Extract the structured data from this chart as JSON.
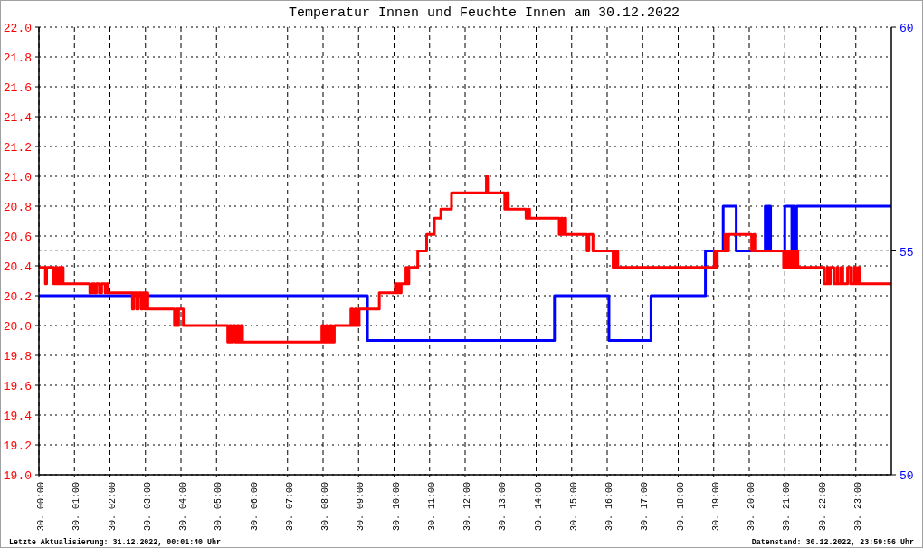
{
  "chart_data": {
    "type": "step",
    "title": "Temperatur Innen und Feuchte Innen am 30.12.2022",
    "xlim": [
      "2022-12-30T00:00",
      "2022-12-31T00:00"
    ],
    "xticks": [
      {
        "value": "2022-12-30T00:00",
        "label": "30. 00:00"
      },
      {
        "value": "2022-12-30T01:00",
        "label": "30. 01:00"
      },
      {
        "value": "2022-12-30T02:00",
        "label": "30. 02:00"
      },
      {
        "value": "2022-12-30T03:00",
        "label": "30. 03:00"
      },
      {
        "value": "2022-12-30T04:00",
        "label": "30. 04:00"
      },
      {
        "value": "2022-12-30T05:00",
        "label": "30. 05:00"
      },
      {
        "value": "2022-12-30T06:00",
        "label": "30. 06:00"
      },
      {
        "value": "2022-12-30T07:00",
        "label": "30. 07:00"
      },
      {
        "value": "2022-12-30T08:00",
        "label": "30. 08:00"
      },
      {
        "value": "2022-12-30T09:00",
        "label": "30. 09:00"
      },
      {
        "value": "2022-12-30T10:00",
        "label": "30. 10:00"
      },
      {
        "value": "2022-12-30T11:00",
        "label": "30. 11:00"
      },
      {
        "value": "2022-12-30T12:00",
        "label": "30. 12:00"
      },
      {
        "value": "2022-12-30T13:00",
        "label": "30. 13:00"
      },
      {
        "value": "2022-12-30T14:00",
        "label": "30. 14:00"
      },
      {
        "value": "2022-12-30T15:00",
        "label": "30. 15:00"
      },
      {
        "value": "2022-12-30T16:00",
        "label": "30. 16:00"
      },
      {
        "value": "2022-12-30T17:00",
        "label": "30. 17:00"
      },
      {
        "value": "2022-12-30T18:00",
        "label": "30. 18:00"
      },
      {
        "value": "2022-12-30T19:00",
        "label": "30. 19:00"
      },
      {
        "value": "2022-12-30T20:00",
        "label": "30. 20:00"
      },
      {
        "value": "2022-12-30T21:00",
        "label": "30. 21:00"
      },
      {
        "value": "2022-12-30T22:00",
        "label": "30. 22:00"
      },
      {
        "value": "2022-12-30T23:00",
        "label": "30. 23:00"
      }
    ],
    "ylim": [
      19,
      22
    ],
    "yticks": [
      {
        "value": 19,
        "label": "19.0"
      },
      19.2,
      19.4,
      19.6,
      19.8,
      {
        "value": 20,
        "label": "20.0"
      },
      20.2,
      20.4,
      20.6,
      20.8,
      {
        "value": 21,
        "label": "21.0"
      },
      21.2,
      21.4,
      21.6,
      21.8,
      {
        "value": 22,
        "label": "22.0"
      }
    ],
    "y2lim": [
      50,
      60
    ],
    "y2ticks": [
      50,
      55,
      60
    ],
    "grid": true,
    "ref_lines": [
      {
        "axis": "y2",
        "value": 55,
        "color": "#c0c0c0",
        "line_style": "dashed"
      }
    ],
    "series": [
      {
        "color": "#ff0000",
        "x": [
          "2022-12-30T00:00",
          "2022-12-30T00:11",
          "2022-12-30T00:13",
          "2022-12-30T00:25",
          "2022-12-30T00:28",
          "2022-12-30T00:31",
          "2022-12-30T00:34",
          "2022-12-30T00:37",
          "2022-12-30T00:39",
          "2022-12-30T00:41",
          "2022-12-30T01:26",
          "2022-12-30T01:30",
          "2022-12-30T01:34",
          "2022-12-30T01:37",
          "2022-12-30T01:42",
          "2022-12-30T01:46",
          "2022-12-30T01:52",
          "2022-12-30T01:54",
          "2022-12-30T01:57",
          "2022-12-30T02:38",
          "2022-12-30T02:40",
          "2022-12-30T02:45",
          "2022-12-30T02:48",
          "2022-12-30T02:53",
          "2022-12-30T02:55",
          "2022-12-30T02:59",
          "2022-12-30T03:01",
          "2022-12-30T03:04",
          "2022-12-30T03:49",
          "2022-12-30T03:52",
          "2022-12-30T03:54",
          "2022-12-30T03:56",
          "2022-12-30T04:04",
          "2022-12-30T05:19",
          "2022-12-30T05:22",
          "2022-12-30T05:25",
          "2022-12-30T05:28",
          "2022-12-30T05:32",
          "2022-12-30T05:35",
          "2022-12-30T05:38",
          "2022-12-30T05:41",
          "2022-12-30T05:44",
          "2022-12-30T07:58",
          "2022-12-30T08:01",
          "2022-12-30T08:05",
          "2022-12-30T08:08",
          "2022-12-30T08:12",
          "2022-12-30T08:15",
          "2022-12-30T08:19",
          "2022-12-30T08:47",
          "2022-12-30T08:50",
          "2022-12-30T08:54",
          "2022-12-30T08:57",
          "2022-12-30T09:01",
          "2022-12-30T09:35",
          "2022-12-30T10:02",
          "2022-12-30T10:05",
          "2022-12-30T10:07",
          "2022-12-30T10:10",
          "2022-12-30T10:12",
          "2022-12-30T10:20",
          "2022-12-30T10:23",
          "2022-12-30T10:25",
          "2022-12-30T10:40",
          "2022-12-30T10:55",
          "2022-12-30T11:08",
          "2022-12-30T11:19",
          "2022-12-30T11:37",
          "2022-12-30T12:36",
          "2022-12-30T12:38",
          "2022-12-30T13:07",
          "2022-12-30T13:10",
          "2022-12-30T13:13",
          "2022-12-30T13:43",
          "2022-12-30T13:46",
          "2022-12-30T13:49",
          "2022-12-30T14:39",
          "2022-12-30T14:42",
          "2022-12-30T14:45",
          "2022-12-30T14:48",
          "2022-12-30T14:50",
          "2022-12-30T15:26",
          "2022-12-30T15:29",
          "2022-12-30T15:36",
          "2022-12-30T16:10",
          "2022-12-30T16:12",
          "2022-12-30T16:14",
          "2022-12-30T16:17",
          "2022-12-30T16:18",
          "2022-12-30T19:01",
          "2022-12-30T19:04",
          "2022-12-30T19:06",
          "2022-12-30T19:19",
          "2022-12-30T19:22",
          "2022-12-30T19:25",
          "2022-12-30T20:04",
          "2022-12-30T20:07",
          "2022-12-30T20:11",
          "2022-12-30T20:58",
          "2022-12-30T21:00",
          "2022-12-30T21:03",
          "2022-12-30T21:06",
          "2022-12-30T21:10",
          "2022-12-30T21:13",
          "2022-12-30T21:17",
          "2022-12-30T21:19",
          "2022-12-30T21:22",
          "2022-12-30T22:07",
          "2022-12-30T22:12",
          "2022-12-30T22:14",
          "2022-12-30T22:17",
          "2022-12-30T22:23",
          "2022-12-30T22:28",
          "2022-12-30T22:30",
          "2022-12-30T22:35",
          "2022-12-30T22:38",
          "2022-12-30T22:46",
          "2022-12-30T22:51",
          "2022-12-30T22:57",
          "2022-12-30T23:00",
          "2022-12-30T23:04",
          "2022-12-30T23:06",
          "2022-12-31T00:00"
        ],
        "values": [
          20.39,
          20.28,
          20.39,
          20.28,
          20.39,
          20.28,
          20.39,
          20.28,
          20.39,
          20.28,
          20.22,
          20.28,
          20.22,
          20.28,
          20.22,
          20.28,
          20.22,
          20.28,
          20.22,
          20.11,
          20.22,
          20.11,
          20.22,
          20.11,
          20.22,
          20.11,
          20.22,
          20.11,
          20.0,
          20.11,
          20.0,
          20.11,
          20.0,
          19.89,
          20.0,
          19.89,
          20.0,
          19.89,
          20.0,
          19.89,
          20.0,
          19.89,
          20.0,
          19.89,
          20.0,
          19.89,
          20.0,
          19.89,
          20.0,
          20.11,
          20.0,
          20.11,
          20.0,
          20.11,
          20.22,
          20.28,
          20.22,
          20.28,
          20.22,
          20.28,
          20.39,
          20.28,
          20.39,
          20.5,
          20.61,
          20.72,
          20.78,
          20.89,
          21.0,
          20.89,
          20.78,
          20.89,
          20.78,
          20.72,
          20.78,
          20.72,
          20.61,
          20.72,
          20.61,
          20.72,
          20.61,
          20.5,
          20.61,
          20.5,
          20.39,
          20.5,
          20.39,
          20.5,
          20.39,
          20.5,
          20.39,
          20.5,
          20.61,
          20.5,
          20.61,
          20.5,
          20.61,
          20.5,
          20.39,
          20.5,
          20.39,
          20.5,
          20.39,
          20.5,
          20.39,
          20.5,
          20.39,
          20.28,
          20.39,
          20.28,
          20.39,
          20.28,
          20.39,
          20.28,
          20.39,
          20.28,
          20.39,
          20.28,
          20.39,
          20.28,
          20.39,
          20.28,
          20.28
        ]
      },
      {
        "color": "#0000ff",
        "axis": "y2",
        "x": [
          "2022-12-30T00:00",
          "2022-12-30T09:15",
          "2022-12-30T14:31",
          "2022-12-30T16:03",
          "2022-12-30T17:14",
          "2022-12-30T18:46",
          "2022-12-30T19:16",
          "2022-12-30T19:38",
          "2022-12-30T20:27",
          "2022-12-30T20:30",
          "2022-12-30T20:32",
          "2022-12-30T20:36",
          "2022-12-30T21:00",
          "2022-12-30T21:12",
          "2022-12-30T21:14",
          "2022-12-30T21:17",
          "2022-12-30T21:20",
          "2022-12-31T00:00"
        ],
        "values": [
          54,
          53,
          54,
          53,
          54,
          55,
          56,
          55,
          56,
          55,
          56,
          55,
          56,
          55,
          56,
          55,
          56,
          56
        ]
      }
    ],
    "annotations": [
      "Letzte Aktualisierung: 31.12.2022, 00:01:40 Uhr",
      "Datenstand: 30.12.2022, 23:59:56 Uhr"
    ]
  }
}
